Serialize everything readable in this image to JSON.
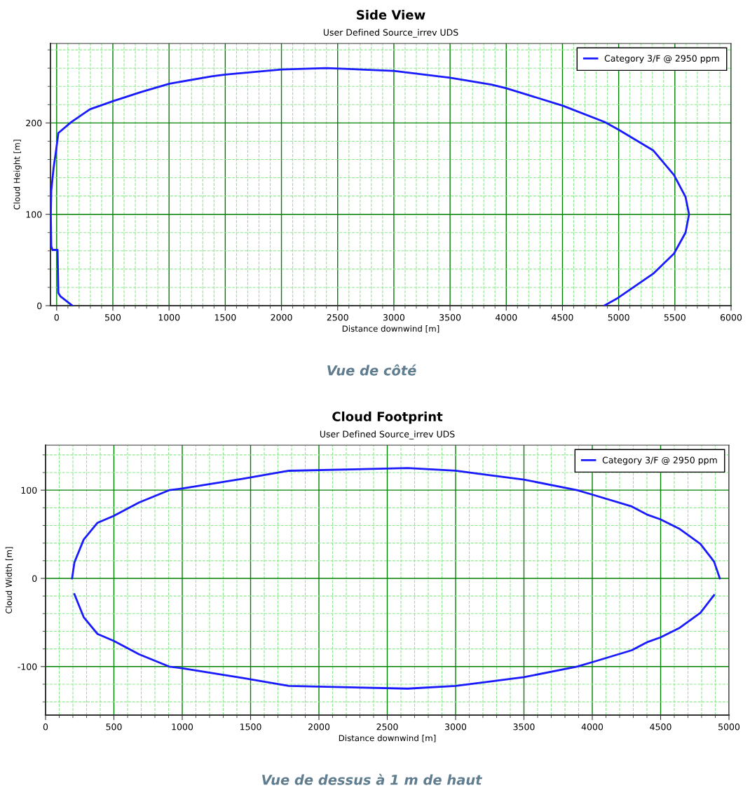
{
  "chart_data": [
    {
      "type": "line",
      "title": "Side View",
      "subtitle": "User Defined Source_irrev UDS",
      "xlabel": "Distance downwind [m]",
      "ylabel": "Cloud Height [m]",
      "series": [
        {
          "name": "Category 3/F @ 2950 ppm",
          "color": "#1a1aff",
          "x": [
            140,
            35,
            15,
            8,
            -37,
            -48,
            -52,
            -48,
            -27,
            -6,
            15,
            130,
            296,
            504,
            754,
            1004,
            1379,
            1500,
            2000,
            2400,
            3000,
            3500,
            3866,
            4000,
            4500,
            4875,
            4994,
            5307,
            5492,
            5595,
            5626,
            5595,
            5492,
            5307,
            4994,
            4871
          ],
          "values": [
            0,
            10,
            14,
            61,
            61,
            65,
            100,
            126,
            151,
            169,
            189,
            201,
            215,
            224,
            234,
            243,
            251,
            253,
            258.5,
            260,
            257,
            249.5,
            242,
            238,
            219,
            201,
            193,
            170,
            143,
            119,
            100,
            80,
            57,
            35,
            8.5,
            0
          ]
        }
      ],
      "xlim": [
        -55,
        6000
      ],
      "ylim": [
        0,
        287
      ],
      "xticks": [
        0,
        500,
        1000,
        1500,
        2000,
        2500,
        3000,
        3500,
        4000,
        4500,
        5000,
        5500,
        6000,
        {
          "value": 100,
          "label": null
        },
        {
          "value": 200,
          "label": null
        },
        {
          "value": 300,
          "label": null
        },
        {
          "value": 400,
          "label": null
        },
        {
          "value": 600,
          "label": null
        },
        {
          "value": 700,
          "label": null
        },
        {
          "value": 800,
          "label": null
        },
        {
          "value": 900,
          "label": null
        },
        {
          "value": 1100,
          "label": null
        },
        {
          "value": 1200,
          "label": null
        },
        {
          "value": 1300,
          "label": null
        },
        {
          "value": 1400,
          "label": null
        },
        {
          "value": 1600,
          "label": null
        },
        {
          "value": 1700,
          "label": null
        },
        {
          "value": 1800,
          "label": null
        },
        {
          "value": 1900,
          "label": null
        },
        {
          "value": 2100,
          "label": null
        },
        {
          "value": 2200,
          "label": null
        },
        {
          "value": 2300,
          "label": null
        },
        {
          "value": 2400,
          "label": null
        },
        {
          "value": 2600,
          "label": null
        },
        {
          "value": 2700,
          "label": null
        },
        {
          "value": 2800,
          "label": null
        },
        {
          "value": 2900,
          "label": null
        },
        {
          "value": 3100,
          "label": null
        },
        {
          "value": 3200,
          "label": null
        },
        {
          "value": 3300,
          "label": null
        },
        {
          "value": 3400,
          "label": null
        },
        {
          "value": 3600,
          "label": null
        },
        {
          "value": 3700,
          "label": null
        },
        {
          "value": 3800,
          "label": null
        },
        {
          "value": 3900,
          "label": null
        },
        {
          "value": 4100,
          "label": null
        },
        {
          "value": 4200,
          "label": null
        },
        {
          "value": 4300,
          "label": null
        },
        {
          "value": 4400,
          "label": null
        },
        {
          "value": 4600,
          "label": null
        },
        {
          "value": 4700,
          "label": null
        },
        {
          "value": 4800,
          "label": null
        },
        {
          "value": 4900,
          "label": null
        },
        {
          "value": 5100,
          "label": null
        },
        {
          "value": 5200,
          "label": null
        },
        {
          "value": 5300,
          "label": null
        },
        {
          "value": 5400,
          "label": null
        },
        {
          "value": 5600,
          "label": null
        },
        {
          "value": 5700,
          "label": null
        },
        {
          "value": 5800,
          "label": null
        },
        {
          "value": 5900,
          "label": null
        }
      ],
      "yticks": [
        0,
        100,
        200,
        {
          "value": 20,
          "label": null
        },
        {
          "value": 40,
          "label": null
        },
        {
          "value": 60,
          "label": null
        },
        {
          "value": 80,
          "label": null
        },
        {
          "value": 120,
          "label": null
        },
        {
          "value": 140,
          "label": null
        },
        {
          "value": 160,
          "label": null
        },
        {
          "value": 180,
          "label": null
        },
        {
          "value": 220,
          "label": null
        },
        {
          "value": 240,
          "label": null
        },
        {
          "value": 260,
          "label": null
        },
        {
          "value": 280,
          "label": null
        }
      ],
      "grid": true,
      "legend": "top right",
      "marker": "none",
      "line_style": "solid",
      "annotations": [
        "Vue de côté"
      ]
    },
    {
      "type": "line",
      "title": "Cloud Footprint",
      "subtitle": "User Defined Source_irrev UDS",
      "xlabel": "Distance downwind [m]",
      "ylabel": "Cloud Width [m]",
      "series": [
        {
          "name": "Category 3/F @ 2950 ppm",
          "color": "#1a1aff",
          "x": [
            4933,
            4891,
            4791,
            4640,
            4498,
            4406,
            4289,
            4000,
            3888,
            3500,
            3202,
            3000,
            2650,
            1780,
            1444,
            1005,
            904,
            684,
            500,
            380,
            279,
            211,
            194
          ],
          "values": [
            0,
            19,
            39,
            56,
            67,
            72,
            81.5,
            95,
            100,
            112,
            118,
            122,
            125,
            122,
            113,
            102,
            100,
            86,
            71,
            63,
            44,
            18,
            0
          ]
        },
        {
          "color": "#1a1aff",
          "x": [
            211,
            279,
            380,
            500,
            684,
            904,
            1005,
            1444,
            1780,
            2650,
            3000,
            3202,
            3500,
            3888,
            4000,
            4289,
            4406,
            4498,
            4640,
            4791,
            4891
          ],
          "values": [
            -18,
            -44,
            -63,
            -71,
            -86,
            -100,
            -102,
            -113,
            -122,
            -125,
            -122,
            -118,
            -112,
            -100,
            -95,
            -81.5,
            -72,
            -67,
            -56,
            -39,
            -19
          ]
        }
      ],
      "xlim": [
        0,
        5000
      ],
      "ylim": [
        -155,
        151
      ],
      "xticks": [
        0,
        500,
        1000,
        1500,
        2000,
        2500,
        3000,
        3500,
        4000,
        4500,
        5000,
        {
          "value": 100,
          "label": null
        },
        {
          "value": 200,
          "label": null
        },
        {
          "value": 300,
          "label": null
        },
        {
          "value": 400,
          "label": null
        },
        {
          "value": 600,
          "label": null
        },
        {
          "value": 700,
          "label": null
        },
        {
          "value": 800,
          "label": null
        },
        {
          "value": 900,
          "label": null
        },
        {
          "value": 1100,
          "label": null
        },
        {
          "value": 1200,
          "label": null
        },
        {
          "value": 1300,
          "label": null
        },
        {
          "value": 1400,
          "label": null
        },
        {
          "value": 1600,
          "label": null
        },
        {
          "value": 1700,
          "label": null
        },
        {
          "value": 1800,
          "label": null
        },
        {
          "value": 1900,
          "label": null
        },
        {
          "value": 2100,
          "label": null
        },
        {
          "value": 2200,
          "label": null
        },
        {
          "value": 2300,
          "label": null
        },
        {
          "value": 2400,
          "label": null
        },
        {
          "value": 2600,
          "label": null
        },
        {
          "value": 2700,
          "label": null
        },
        {
          "value": 2800,
          "label": null
        },
        {
          "value": 2900,
          "label": null
        },
        {
          "value": 3100,
          "label": null
        },
        {
          "value": 3200,
          "label": null
        },
        {
          "value": 3300,
          "label": null
        },
        {
          "value": 3400,
          "label": null
        },
        {
          "value": 3600,
          "label": null
        },
        {
          "value": 3700,
          "label": null
        },
        {
          "value": 3800,
          "label": null
        },
        {
          "value": 3900,
          "label": null
        },
        {
          "value": 4100,
          "label": null
        },
        {
          "value": 4200,
          "label": null
        },
        {
          "value": 4300,
          "label": null
        },
        {
          "value": 4400,
          "label": null
        },
        {
          "value": 4600,
          "label": null
        },
        {
          "value": 4700,
          "label": null
        },
        {
          "value": 4800,
          "label": null
        },
        {
          "value": 4900,
          "label": null
        }
      ],
      "yticks": [
        -100,
        0,
        100,
        {
          "value": -140,
          "label": null
        },
        {
          "value": -120,
          "label": null
        },
        {
          "value": -80,
          "label": null
        },
        {
          "value": -60,
          "label": null
        },
        {
          "value": -40,
          "label": null
        },
        {
          "value": -20,
          "label": null
        },
        {
          "value": 20,
          "label": null
        },
        {
          "value": 40,
          "label": null
        },
        {
          "value": 60,
          "label": null
        },
        {
          "value": 80,
          "label": null
        },
        {
          "value": 120,
          "label": null
        },
        {
          "value": 140,
          "label": null
        }
      ],
      "grid": true,
      "legend": "top right",
      "marker": "none",
      "line_style": "solid",
      "annotations": [
        "Vue de dessus à 1 m de haut"
      ]
    }
  ]
}
